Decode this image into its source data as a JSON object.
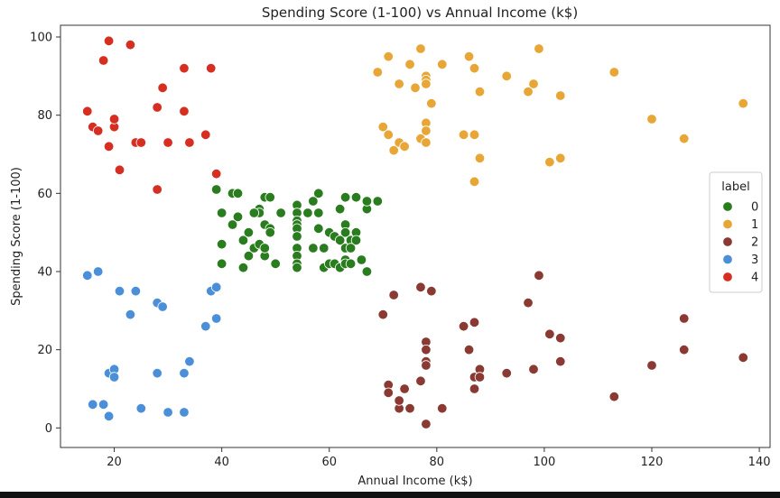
{
  "chart_data": {
    "type": "scatter",
    "title": "Spending Score (1-100) vs Annual Income (k$)",
    "xlabel": "Annual Income (k$)",
    "ylabel": "Spending Score (1-100)",
    "xlim": [
      10,
      142
    ],
    "ylim": [
      -5,
      103
    ],
    "xticks": [
      20,
      40,
      60,
      80,
      100,
      120,
      140
    ],
    "yticks": [
      0,
      20,
      40,
      60,
      80,
      100
    ],
    "grid": false,
    "legend": {
      "title": "label",
      "placement": "right"
    },
    "series": [
      {
        "name": "0",
        "color": "#2a7d1f",
        "points": [
          [
            39,
            61
          ],
          [
            42,
            60
          ],
          [
            43,
            60
          ],
          [
            40,
            55
          ],
          [
            40,
            47
          ],
          [
            40,
            42
          ],
          [
            42,
            52
          ],
          [
            43,
            54
          ],
          [
            44,
            41
          ],
          [
            44,
            48
          ],
          [
            45,
            50
          ],
          [
            45,
            44
          ],
          [
            46,
            46
          ],
          [
            47,
            47
          ],
          [
            48,
            59
          ],
          [
            47,
            56
          ],
          [
            48,
            52
          ],
          [
            49,
            51
          ],
          [
            47,
            55
          ],
          [
            49,
            59
          ],
          [
            48,
            44
          ],
          [
            49,
            50
          ],
          [
            50,
            42
          ],
          [
            48,
            46
          ],
          [
            51,
            55
          ],
          [
            46,
            55
          ],
          [
            54,
            57
          ],
          [
            54,
            55
          ],
          [
            54,
            53
          ],
          [
            54,
            52
          ],
          [
            54,
            51
          ],
          [
            54,
            49
          ],
          [
            54,
            46
          ],
          [
            54,
            44
          ],
          [
            54,
            42
          ],
          [
            54,
            41
          ],
          [
            57,
            58
          ],
          [
            58,
            60
          ],
          [
            56,
            55
          ],
          [
            58,
            55
          ],
          [
            58,
            51
          ],
          [
            59,
            46
          ],
          [
            59,
            41
          ],
          [
            60,
            50
          ],
          [
            60,
            42
          ],
          [
            61,
            49
          ],
          [
            61,
            42
          ],
          [
            62,
            56
          ],
          [
            62,
            48
          ],
          [
            62,
            41
          ],
          [
            63,
            59
          ],
          [
            63,
            52
          ],
          [
            63,
            50
          ],
          [
            63,
            46
          ],
          [
            63,
            43
          ],
          [
            63,
            42
          ],
          [
            64,
            48
          ],
          [
            64,
            46
          ],
          [
            64,
            42
          ],
          [
            65,
            59
          ],
          [
            65,
            50
          ],
          [
            65,
            48
          ],
          [
            66,
            43
          ],
          [
            67,
            56
          ],
          [
            67,
            40
          ],
          [
            67,
            58
          ],
          [
            69,
            58
          ],
          [
            57,
            46
          ]
        ]
      },
      {
        "name": "1",
        "color": "#e8a637",
        "points": [
          [
            69,
            91
          ],
          [
            70,
            77
          ],
          [
            71,
            95
          ],
          [
            71,
            75
          ],
          [
            72,
            71
          ],
          [
            73,
            88
          ],
          [
            73,
            73
          ],
          [
            74,
            72
          ],
          [
            75,
            93
          ],
          [
            76,
            87
          ],
          [
            77,
            97
          ],
          [
            77,
            74
          ],
          [
            78,
            90
          ],
          [
            78,
            89
          ],
          [
            78,
            88
          ],
          [
            78,
            78
          ],
          [
            78,
            76
          ],
          [
            78,
            73
          ],
          [
            79,
            83
          ],
          [
            81,
            93
          ],
          [
            85,
            75
          ],
          [
            86,
            95
          ],
          [
            87,
            92
          ],
          [
            87,
            75
          ],
          [
            87,
            63
          ],
          [
            88,
            86
          ],
          [
            88,
            69
          ],
          [
            93,
            90
          ],
          [
            97,
            86
          ],
          [
            98,
            88
          ],
          [
            99,
            97
          ],
          [
            101,
            68
          ],
          [
            103,
            85
          ],
          [
            103,
            69
          ],
          [
            113,
            91
          ],
          [
            120,
            79
          ],
          [
            126,
            74
          ],
          [
            137,
            83
          ]
        ]
      },
      {
        "name": "2",
        "color": "#8b3a33",
        "points": [
          [
            70,
            29
          ],
          [
            71,
            11
          ],
          [
            71,
            9
          ],
          [
            72,
            34
          ],
          [
            73,
            5
          ],
          [
            73,
            7
          ],
          [
            74,
            10
          ],
          [
            75,
            5
          ],
          [
            77,
            12
          ],
          [
            77,
            36
          ],
          [
            78,
            22
          ],
          [
            78,
            20
          ],
          [
            78,
            17
          ],
          [
            78,
            16
          ],
          [
            78,
            1
          ],
          [
            79,
            35
          ],
          [
            81,
            5
          ],
          [
            85,
            26
          ],
          [
            86,
            20
          ],
          [
            87,
            27
          ],
          [
            87,
            13
          ],
          [
            87,
            10
          ],
          [
            88,
            15
          ],
          [
            88,
            13
          ],
          [
            93,
            14
          ],
          [
            97,
            32
          ],
          [
            98,
            15
          ],
          [
            99,
            39
          ],
          [
            101,
            24
          ],
          [
            103,
            23
          ],
          [
            103,
            17
          ],
          [
            113,
            8
          ],
          [
            120,
            16
          ],
          [
            126,
            28
          ],
          [
            126,
            20
          ],
          [
            137,
            18
          ]
        ]
      },
      {
        "name": "3",
        "color": "#4c8fd9",
        "points": [
          [
            15,
            39
          ],
          [
            16,
            6
          ],
          [
            17,
            40
          ],
          [
            18,
            6
          ],
          [
            19,
            3
          ],
          [
            19,
            14
          ],
          [
            20,
            15
          ],
          [
            20,
            13
          ],
          [
            21,
            35
          ],
          [
            23,
            29
          ],
          [
            24,
            35
          ],
          [
            25,
            5
          ],
          [
            28,
            14
          ],
          [
            28,
            32
          ],
          [
            29,
            31
          ],
          [
            30,
            4
          ],
          [
            33,
            4
          ],
          [
            33,
            14
          ],
          [
            34,
            17
          ],
          [
            37,
            26
          ],
          [
            38,
            35
          ],
          [
            39,
            36
          ],
          [
            39,
            28
          ]
        ]
      },
      {
        "name": "4",
        "color": "#d62f22",
        "points": [
          [
            15,
            81
          ],
          [
            16,
            77
          ],
          [
            17,
            76
          ],
          [
            18,
            94
          ],
          [
            19,
            99
          ],
          [
            19,
            72
          ],
          [
            20,
            77
          ],
          [
            20,
            79
          ],
          [
            21,
            66
          ],
          [
            23,
            98
          ],
          [
            24,
            73
          ],
          [
            25,
            73
          ],
          [
            28,
            82
          ],
          [
            28,
            61
          ],
          [
            29,
            87
          ],
          [
            30,
            73
          ],
          [
            33,
            92
          ],
          [
            33,
            81
          ],
          [
            34,
            73
          ],
          [
            37,
            75
          ],
          [
            38,
            92
          ],
          [
            39,
            65
          ]
        ]
      }
    ]
  }
}
